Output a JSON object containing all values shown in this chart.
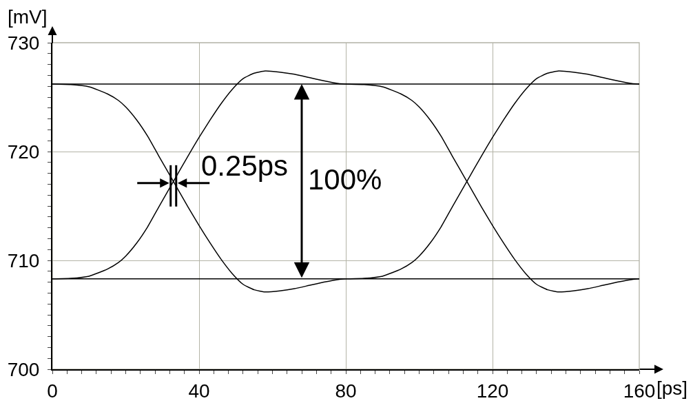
{
  "chart_data": {
    "type": "line",
    "xlabel": "[ps]",
    "ylabel": "[mV]",
    "xlim": [
      0,
      160
    ],
    "ylim": [
      700,
      730
    ],
    "xticks": [
      0,
      {
        "value": 4,
        "label": null
      },
      {
        "value": 8,
        "label": null
      },
      {
        "value": 12,
        "label": null
      },
      {
        "value": 16,
        "label": null
      },
      {
        "value": 20,
        "label": null
      },
      {
        "value": 24,
        "label": null
      },
      {
        "value": 28,
        "label": null
      },
      {
        "value": 32,
        "label": null
      },
      {
        "value": 36,
        "label": null
      },
      40,
      {
        "value": 44,
        "label": null
      },
      {
        "value": 48,
        "label": null
      },
      {
        "value": 52,
        "label": null
      },
      {
        "value": 56,
        "label": null
      },
      {
        "value": 60,
        "label": null
      },
      {
        "value": 64,
        "label": null
      },
      {
        "value": 68,
        "label": null
      },
      {
        "value": 72,
        "label": null
      },
      {
        "value": 76,
        "label": null
      },
      80,
      {
        "value": 84,
        "label": null
      },
      {
        "value": 88,
        "label": null
      },
      {
        "value": 92,
        "label": null
      },
      {
        "value": 96,
        "label": null
      },
      {
        "value": 100,
        "label": null
      },
      {
        "value": 104,
        "label": null
      },
      {
        "value": 108,
        "label": null
      },
      {
        "value": 112,
        "label": null
      },
      {
        "value": 116,
        "label": null
      },
      120,
      {
        "value": 124,
        "label": null
      },
      {
        "value": 128,
        "label": null
      },
      {
        "value": 132,
        "label": null
      },
      {
        "value": 136,
        "label": null
      },
      {
        "value": 140,
        "label": null
      },
      {
        "value": 144,
        "label": null
      },
      {
        "value": 148,
        "label": null
      },
      {
        "value": 152,
        "label": null
      },
      {
        "value": 156,
        "label": null
      },
      160
    ],
    "yticks": [
      700,
      {
        "value": 701,
        "label": null
      },
      {
        "value": 702,
        "label": null
      },
      {
        "value": 703,
        "label": null
      },
      {
        "value": 704,
        "label": null
      },
      {
        "value": 705,
        "label": null
      },
      {
        "value": 706,
        "label": null
      },
      {
        "value": 707,
        "label": null
      },
      {
        "value": 708,
        "label": null
      },
      {
        "value": 709,
        "label": null
      },
      710,
      {
        "value": 711,
        "label": null
      },
      {
        "value": 712,
        "label": null
      },
      {
        "value": 713,
        "label": null
      },
      {
        "value": 714,
        "label": null
      },
      {
        "value": 715,
        "label": null
      },
      {
        "value": 716,
        "label": null
      },
      {
        "value": 717,
        "label": null
      },
      {
        "value": 718,
        "label": null
      },
      {
        "value": 719,
        "label": null
      },
      720,
      {
        "value": 721,
        "label": null
      },
      {
        "value": 722,
        "label": null
      },
      {
        "value": 723,
        "label": null
      },
      {
        "value": 724,
        "label": null
      },
      {
        "value": 725,
        "label": null
      },
      {
        "value": 726,
        "label": null
      },
      {
        "value": 727,
        "label": null
      },
      {
        "value": 728,
        "label": null
      },
      {
        "value": 729,
        "label": null
      },
      730
    ],
    "grid": true,
    "series": [
      {
        "color": "#000000",
        "x": [
          0,
          160
        ],
        "values": [
          726.2,
          726.2
        ]
      },
      {
        "color": "#000000",
        "x": [
          0,
          160
        ],
        "values": [
          708.3,
          708.3
        ]
      },
      {
        "color": "#000000",
        "x": [
          0,
          5,
          10,
          15,
          18,
          20,
          23,
          26,
          29,
          33,
          37,
          40,
          43,
          46,
          49,
          52,
          55,
          58,
          62,
          66,
          70,
          74,
          78,
          80
        ],
        "values": [
          708.3,
          708.35,
          708.55,
          709.2,
          709.8,
          710.4,
          711.6,
          713.1,
          714.9,
          717.25,
          719.6,
          721.3,
          722.9,
          724.4,
          725.7,
          726.7,
          727.2,
          727.4,
          727.3,
          727.1,
          726.8,
          726.5,
          726.25,
          726.2
        ]
      },
      {
        "color": "#000000",
        "x": [
          0,
          5,
          10,
          15,
          18,
          20,
          23,
          26,
          29,
          33,
          37,
          40,
          43,
          46,
          49,
          52,
          55,
          58,
          62,
          66,
          70,
          74,
          78,
          80
        ],
        "values": [
          726.2,
          726.15,
          725.95,
          725.3,
          724.7,
          724.1,
          722.9,
          721.4,
          719.6,
          717.25,
          714.9,
          713.2,
          711.6,
          710.1,
          708.8,
          707.8,
          707.3,
          707.1,
          707.2,
          707.4,
          707.7,
          708.0,
          708.25,
          708.3
        ]
      },
      {
        "color": "#000000",
        "x": [
          80,
          85,
          90,
          95,
          98,
          100,
          103,
          106,
          109,
          113,
          117,
          120,
          123,
          126,
          129,
          132,
          135,
          138,
          142,
          146,
          150,
          154,
          158,
          160
        ],
        "values": [
          708.3,
          708.35,
          708.55,
          709.2,
          709.8,
          710.4,
          711.6,
          713.1,
          714.9,
          717.25,
          719.6,
          721.3,
          722.9,
          724.4,
          725.7,
          726.7,
          727.2,
          727.4,
          727.3,
          727.1,
          726.8,
          726.5,
          726.25,
          726.2
        ]
      },
      {
        "color": "#000000",
        "x": [
          80,
          85,
          90,
          95,
          98,
          100,
          103,
          106,
          109,
          113,
          117,
          120,
          123,
          126,
          129,
          132,
          135,
          138,
          142,
          146,
          150,
          154,
          158,
          160
        ],
        "values": [
          726.2,
          726.15,
          725.95,
          725.3,
          724.7,
          724.1,
          722.9,
          721.4,
          719.6,
          717.25,
          714.9,
          713.2,
          711.6,
          710.1,
          708.8,
          707.8,
          707.3,
          707.1,
          707.2,
          707.4,
          707.7,
          708.0,
          708.25,
          708.3
        ]
      }
    ],
    "annotations": [
      {
        "text": "0.25ps",
        "x": 33,
        "y": 717.1
      },
      "100%"
    ]
  }
}
